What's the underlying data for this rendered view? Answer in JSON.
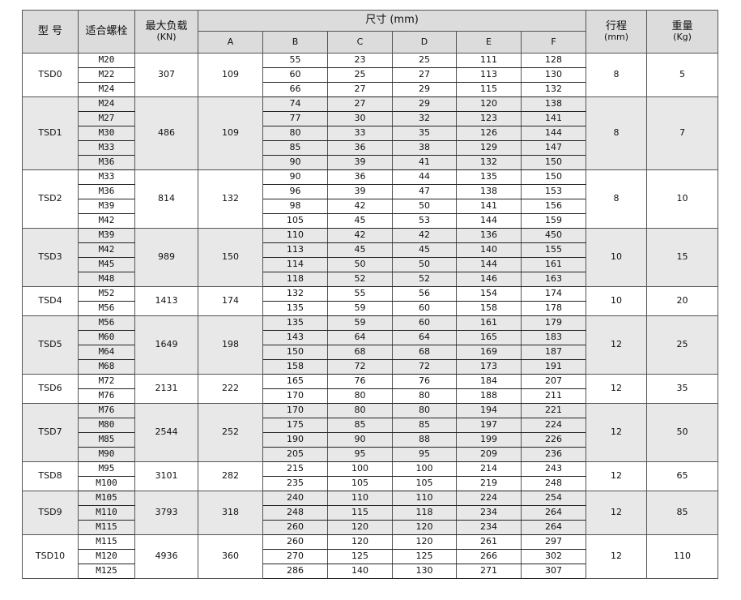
{
  "header": {
    "model": "型 号",
    "bolt": "适合螺栓",
    "max_load": "最大负载",
    "max_load_unit": "(KN)",
    "dimensions": "尺寸  (mm)",
    "dim_cols": [
      "A",
      "B",
      "C",
      "D",
      "E",
      "F"
    ],
    "stroke": "行程",
    "stroke_unit": "(mm)",
    "weight": "重量",
    "weight_unit": "(Kg)"
  },
  "groups": [
    {
      "model": "TSD0",
      "load": "307",
      "A": "109",
      "stroke": "8",
      "weight": "5",
      "rows": [
        [
          "M20",
          "55",
          "23",
          "25",
          "111",
          "128"
        ],
        [
          "M22",
          "60",
          "25",
          "27",
          "113",
          "130"
        ],
        [
          "M24",
          "66",
          "27",
          "29",
          "115",
          "132"
        ]
      ]
    },
    {
      "model": "TSD1",
      "load": "486",
      "A": "109",
      "stroke": "8",
      "weight": "7",
      "rows": [
        [
          "M24",
          "74",
          "27",
          "29",
          "120",
          "138"
        ],
        [
          "M27",
          "77",
          "30",
          "32",
          "123",
          "141"
        ],
        [
          "M30",
          "80",
          "33",
          "35",
          "126",
          "144"
        ],
        [
          "M33",
          "85",
          "36",
          "38",
          "129",
          "147"
        ],
        [
          "M36",
          "90",
          "39",
          "41",
          "132",
          "150"
        ]
      ]
    },
    {
      "model": "TSD2",
      "load": "814",
      "A": "132",
      "stroke": "8",
      "weight": "10",
      "rows": [
        [
          "M33",
          "90",
          "36",
          "44",
          "135",
          "150"
        ],
        [
          "M36",
          "96",
          "39",
          "47",
          "138",
          "153"
        ],
        [
          "M39",
          "98",
          "42",
          "50",
          "141",
          "156"
        ],
        [
          "M42",
          "105",
          "45",
          "53",
          "144",
          "159"
        ]
      ]
    },
    {
      "model": "TSD3",
      "load": "989",
      "A": "150",
      "stroke": "10",
      "weight": "15",
      "rows": [
        [
          "M39",
          "110",
          "42",
          "42",
          "136",
          "450"
        ],
        [
          "M42",
          "113",
          "45",
          "45",
          "140",
          "155"
        ],
        [
          "M45",
          "114",
          "50",
          "50",
          "144",
          "161"
        ],
        [
          "M48",
          "118",
          "52",
          "52",
          "146",
          "163"
        ]
      ]
    },
    {
      "model": "TSD4",
      "load": "1413",
      "A": "174",
      "stroke": "10",
      "weight": "20",
      "rows": [
        [
          "M52",
          "132",
          "55",
          "56",
          "154",
          "174"
        ],
        [
          "M56",
          "135",
          "59",
          "60",
          "158",
          "178"
        ]
      ]
    },
    {
      "model": "TSD5",
      "load": "1649",
      "A": "198",
      "stroke": "12",
      "weight": "25",
      "rows": [
        [
          "M56",
          "135",
          "59",
          "60",
          "161",
          "179"
        ],
        [
          "M60",
          "143",
          "64",
          "64",
          "165",
          "183"
        ],
        [
          "M64",
          "150",
          "68",
          "68",
          "169",
          "187"
        ],
        [
          "M68",
          "158",
          "72",
          "72",
          "173",
          "191"
        ]
      ]
    },
    {
      "model": "TSD6",
      "load": "2131",
      "A": "222",
      "stroke": "12",
      "weight": "35",
      "rows": [
        [
          "M72",
          "165",
          "76",
          "76",
          "184",
          "207"
        ],
        [
          "M76",
          "170",
          "80",
          "80",
          "188",
          "211"
        ]
      ]
    },
    {
      "model": "TSD7",
      "load": "2544",
      "A": "252",
      "stroke": "12",
      "weight": "50",
      "rows": [
        [
          "M76",
          "170",
          "80",
          "80",
          "194",
          "221"
        ],
        [
          "M80",
          "175",
          "85",
          "85",
          "197",
          "224"
        ],
        [
          "M85",
          "190",
          "90",
          "88",
          "199",
          "226"
        ],
        [
          "M90",
          "205",
          "95",
          "95",
          "209",
          "236"
        ]
      ]
    },
    {
      "model": "TSD8",
      "load": "3101",
      "A": "282",
      "stroke": "12",
      "weight": "65",
      "rows": [
        [
          "M95",
          "215",
          "100",
          "100",
          "214",
          "243"
        ],
        [
          "M100",
          "235",
          "105",
          "105",
          "219",
          "248"
        ]
      ]
    },
    {
      "model": "TSD9",
      "load": "3793",
      "A": "318",
      "stroke": "12",
      "weight": "85",
      "rows": [
        [
          "M105",
          "240",
          "110",
          "110",
          "224",
          "254"
        ],
        [
          "M110",
          "248",
          "115",
          "118",
          "234",
          "264"
        ],
        [
          "M115",
          "260",
          "120",
          "120",
          "234",
          "264"
        ]
      ]
    },
    {
      "model": "TSD10",
      "load": "4936",
      "A": "360",
      "stroke": "12",
      "weight": "110",
      "rows": [
        [
          "M115",
          "260",
          "120",
          "120",
          "261",
          "297"
        ],
        [
          "M120",
          "270",
          "125",
          "125",
          "266",
          "302"
        ],
        [
          "M125",
          "286",
          "140",
          "130",
          "271",
          "307"
        ]
      ]
    }
  ]
}
